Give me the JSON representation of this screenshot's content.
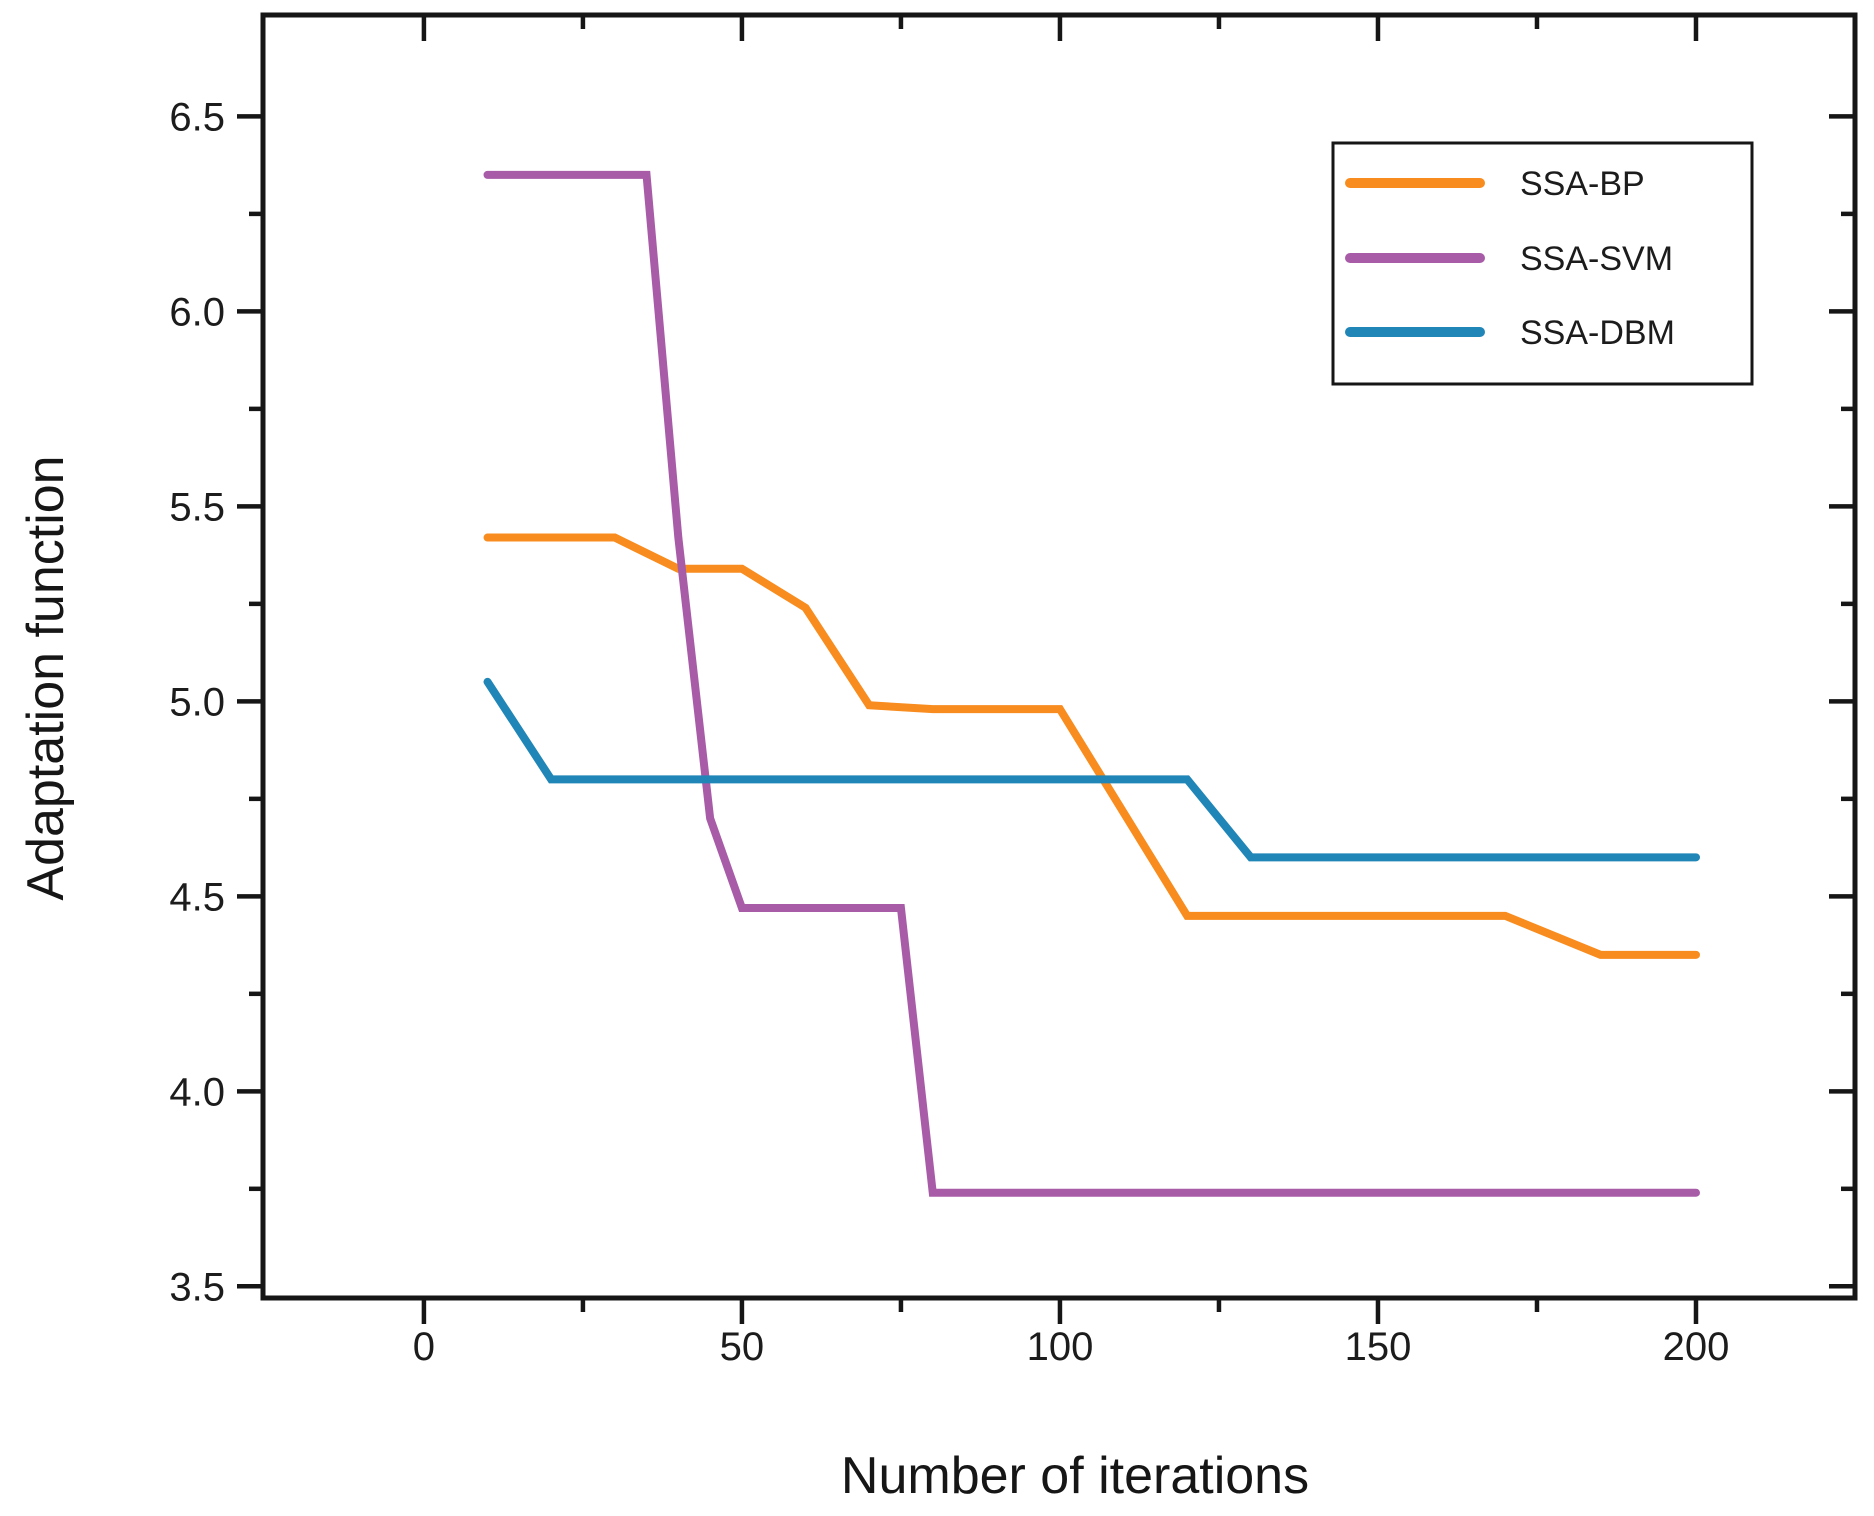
{
  "page": {
    "background": "#ffffff"
  },
  "chart_data": {
    "type": "line",
    "title": "",
    "xlabel": "Number of iterations",
    "ylabel": "Adaptation function",
    "xlim": [
      -25.3,
      225.0
    ],
    "ylim": [
      3.47,
      6.76
    ],
    "grid": false,
    "axis_color": "#161616",
    "x_axis": {
      "major_ticks": [
        0,
        50,
        100,
        150,
        200
      ],
      "tick_labels": [
        "0",
        "50",
        "100",
        "150",
        "200"
      ],
      "minor_ticks": [
        25,
        75,
        125,
        175
      ]
    },
    "y_axis": {
      "major_ticks": [
        6.5,
        6.0,
        5.5,
        5.0,
        4.5,
        4.0,
        3.5
      ],
      "tick_labels": [
        "6.5",
        "6.0",
        "5.5",
        "5.0",
        "4.5",
        "4.0",
        "3.5"
      ],
      "minor_ticks": [
        6.25,
        5.75,
        5.25,
        4.75,
        4.25,
        3.75
      ]
    },
    "legend": {
      "position": "top-right",
      "border": true
    },
    "series": [
      {
        "name": "SSA-BP",
        "color": "#F88C1E",
        "x": [
          10,
          30,
          40,
          50,
          60,
          70,
          80,
          100,
          120,
          170,
          185,
          200
        ],
        "y": [
          5.42,
          5.42,
          5.34,
          5.34,
          5.24,
          4.99,
          4.98,
          4.98,
          4.45,
          4.45,
          4.35,
          4.35
        ]
      },
      {
        "name": "SSA-SVM",
        "color": "#A85CA8",
        "x": [
          10,
          35,
          40,
          45,
          50,
          75,
          80,
          200
        ],
        "y": [
          6.35,
          6.35,
          5.42,
          4.7,
          4.47,
          4.47,
          3.74,
          3.74
        ]
      },
      {
        "name": "SSA-DBM",
        "color": "#2086B7",
        "x": [
          10,
          20,
          120,
          130,
          200
        ],
        "y": [
          5.05,
          4.8,
          4.8,
          4.6,
          4.6
        ]
      }
    ]
  }
}
